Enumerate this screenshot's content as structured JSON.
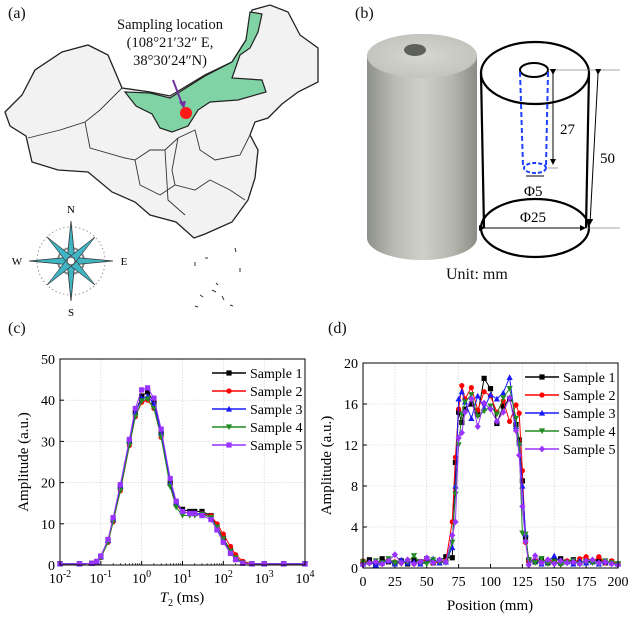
{
  "panels": {
    "a": {
      "label": "(a)",
      "annotation_line1": "Sampling location",
      "annotation_line2": "(108°21′32″ E,",
      "annotation_line3": "38°30′24″N)",
      "compass": {
        "n": "N",
        "s": "S",
        "e": "E",
        "w": "W"
      },
      "colors": {
        "region": "#7fd3a4",
        "marker": "#ff1a1a",
        "arrow": "#7030a0",
        "land": "#f2f2f2",
        "compass": "#3fb5c4"
      },
      "icon": "compass-rose-icon"
    },
    "b": {
      "label": "(b)",
      "dim_depth": "27",
      "dim_height": "50",
      "dim_hole": "Φ5",
      "dim_diameter": "Φ25",
      "unit": "Unit: mm",
      "colors": {
        "hole_dashed": "#1f3fff"
      }
    },
    "c": {
      "label": "(c)"
    },
    "d": {
      "label": "(d)"
    }
  },
  "chart_data": [
    {
      "type": "line",
      "panel": "(c)",
      "xlabel_italic": "T",
      "xlabel_sub": "2",
      "xlabel_unit": " (ms)",
      "ylabel": "Amplitude (a.u.)",
      "xscale": "log",
      "xlim": [
        0.01,
        10000
      ],
      "ylim": [
        0,
        50
      ],
      "xticks": [
        {
          "base": "10",
          "exp": "-2"
        },
        {
          "base": "10",
          "exp": "-1"
        },
        {
          "base": "10",
          "exp": "0"
        },
        {
          "base": "10",
          "exp": "1"
        },
        {
          "base": "10",
          "exp": "2"
        },
        {
          "base": "10",
          "exp": "3"
        },
        {
          "base": "10",
          "exp": "4"
        }
      ],
      "yticks": [
        "0",
        "10",
        "20",
        "30",
        "40",
        "50"
      ],
      "grid": true,
      "legend": "top-right",
      "x": [
        0.01,
        0.03,
        0.06,
        0.08,
        0.1,
        0.15,
        0.2,
        0.3,
        0.5,
        0.7,
        1,
        1.4,
        2,
        3,
        5,
        7,
        10,
        15,
        20,
        30,
        50,
        70,
        100,
        150,
        200,
        300,
        500,
        1000,
        3000,
        10000
      ],
      "series": [
        {
          "name": "Sample 1",
          "color": "#000000",
          "marker": "square",
          "values": [
            0.3,
            0.3,
            0.4,
            0.8,
            2,
            6,
            11,
            19,
            30,
            37,
            41,
            42,
            39.5,
            32,
            20,
            15,
            13.5,
            13,
            13,
            13,
            12,
            9.5,
            6.5,
            3.5,
            1.8,
            0.6,
            0.3,
            0.3,
            0.3,
            0.3
          ]
        },
        {
          "name": "Sample 2",
          "color": "#ff0000",
          "marker": "circle",
          "values": [
            0.3,
            0.3,
            0.4,
            0.7,
            1.8,
            5.5,
            10.5,
            18,
            29,
            36,
            39.5,
            40,
            38,
            31,
            19.5,
            14.5,
            13,
            12.5,
            12.5,
            12.5,
            12,
            10,
            7.5,
            4.5,
            2.5,
            0.9,
            0.3,
            0.3,
            0.3,
            0.3
          ]
        },
        {
          "name": "Sample 3",
          "color": "#1a1aff",
          "marker": "triangle-up",
          "values": [
            0.3,
            0.3,
            0.4,
            0.8,
            2,
            6,
            11,
            19,
            30,
            37,
            40.5,
            41,
            39,
            32,
            20,
            15,
            13,
            12.5,
            12.5,
            12.5,
            11.5,
            9,
            6,
            3.2,
            1.6,
            0.5,
            0.3,
            0.3,
            0.3,
            0.3
          ]
        },
        {
          "name": "Sample 4",
          "color": "#228b22",
          "marker": "triangle-down",
          "values": [
            0.3,
            0.3,
            0.4,
            0.7,
            1.8,
            5.5,
            10.5,
            18,
            29,
            36,
            39.8,
            40.3,
            38,
            31,
            19,
            14,
            12,
            12,
            12,
            12.3,
            11.5,
            9.2,
            6.3,
            3.3,
            1.7,
            0.5,
            0.3,
            0.3,
            0.3,
            0.3
          ]
        },
        {
          "name": "Sample 5",
          "color": "#9933ff",
          "marker": "square",
          "values": [
            0.3,
            0.3,
            0.4,
            0.9,
            2.2,
            6.2,
            11.5,
            19.5,
            30.5,
            38,
            42.5,
            43,
            40.5,
            33,
            21,
            15.5,
            13,
            12.5,
            12.5,
            12,
            11,
            8.5,
            5.5,
            2.8,
            1.3,
            0.4,
            0.3,
            0.3,
            0.3,
            0.3
          ]
        }
      ]
    },
    {
      "type": "line",
      "panel": "(d)",
      "xlabel": "Position (mm)",
      "ylabel": "Amplitude (a.u.)",
      "xlim": [
        0,
        200
      ],
      "ylim": [
        0,
        20
      ],
      "xticks": [
        "0",
        "25",
        "50",
        "75",
        "100",
        "125",
        "150",
        "175",
        "200"
      ],
      "yticks": [
        "0",
        "4",
        "8",
        "12",
        "16",
        "20"
      ],
      "grid": true,
      "legend": "top-right",
      "x": [
        0,
        5,
        10,
        15,
        20,
        25,
        30,
        35,
        40,
        45,
        50,
        55,
        60,
        65,
        70,
        72.5,
        75,
        77.5,
        80,
        85,
        90,
        95,
        100,
        105,
        110,
        115,
        120,
        122.5,
        125,
        127.5,
        130,
        135,
        140,
        145,
        150,
        155,
        160,
        165,
        170,
        175,
        180,
        185,
        190,
        195,
        200
      ],
      "series": [
        {
          "name": "Sample 1",
          "color": "#000000",
          "marker": "square",
          "values": [
            0.5,
            0.8,
            0.4,
            0.9,
            0.6,
            0.5,
            0.7,
            0.4,
            0.8,
            0.6,
            0.9,
            0.5,
            0.7,
            1.1,
            1.0,
            10.3,
            15.2,
            14.2,
            15.5,
            16.0,
            15.0,
            18.5,
            17.5,
            14.1,
            15.8,
            16.5,
            14.0,
            12.5,
            8.5,
            3.0,
            0.8,
            0.6,
            0.9,
            0.5,
            0.7,
            0.9,
            0.6,
            0.8,
            0.5,
            0.7,
            0.6,
            0.8,
            0.5,
            0.6,
            0.4
          ]
        },
        {
          "name": "Sample 2",
          "color": "#ff0000",
          "marker": "circle",
          "values": [
            0.7,
            0.5,
            0.6,
            0.4,
            0.8,
            0.6,
            0.5,
            0.7,
            0.4,
            0.6,
            0.8,
            0.5,
            0.6,
            0.7,
            4.5,
            10.8,
            15.5,
            17.8,
            16.5,
            17.6,
            15.4,
            17.2,
            16.8,
            15.2,
            16.3,
            14.3,
            15.9,
            15.1,
            9.5,
            2.5,
            0.6,
            0.7,
            0.5,
            0.8,
            0.6,
            0.4,
            0.7,
            0.5,
            0.9,
            1.1,
            0.6,
            1.1,
            0.5,
            0.7,
            0.4
          ]
        },
        {
          "name": "Sample 3",
          "color": "#1a1aff",
          "marker": "triangle-up",
          "values": [
            0.4,
            0.6,
            0.3,
            0.5,
            0.7,
            0.4,
            0.8,
            0.5,
            0.6,
            0.4,
            0.7,
            0.9,
            0.5,
            0.6,
            2.0,
            8.0,
            16.5,
            17.2,
            16.2,
            14.6,
            16.8,
            15.6,
            16.9,
            16.5,
            17.1,
            18.6,
            13.8,
            12.2,
            8.0,
            3.3,
            0.5,
            0.7,
            0.4,
            0.6,
            1.2,
            0.5,
            0.6,
            0.4,
            0.7,
            0.5,
            0.6,
            0.4,
            0.6,
            0.5,
            0.4
          ]
        },
        {
          "name": "Sample 4",
          "color": "#228b22",
          "marker": "triangle-down",
          "values": [
            0.6,
            0.4,
            0.7,
            0.5,
            0.9,
            0.5,
            0.4,
            0.6,
            1.2,
            0.5,
            0.4,
            0.8,
            0.6,
            0.5,
            2.5,
            7.2,
            12.0,
            15.0,
            16.2,
            16.9,
            14.8,
            15.3,
            15.8,
            15.0,
            16.6,
            17.5,
            14.6,
            12.0,
            3.4,
            3.3,
            0.8,
            0.5,
            0.9,
            0.4,
            0.6,
            0.3,
            0.5,
            0.7,
            0.4,
            0.6,
            0.5,
            0.4,
            0.7,
            0.5,
            0.4
          ]
        },
        {
          "name": "Sample 5",
          "color": "#9933ff",
          "marker": "diamond",
          "values": [
            0.3,
            0.5,
            0.6,
            0.4,
            0.7,
            1.3,
            0.5,
            0.8,
            0.4,
            0.6,
            1.0,
            0.5,
            0.8,
            0.6,
            3.2,
            4.5,
            12.7,
            13.2,
            15.2,
            16.5,
            13.8,
            16.1,
            15.5,
            14.3,
            15.2,
            16.6,
            13.4,
            11.0,
            6.0,
            2.6,
            0.3,
            1.2,
            0.5,
            0.8,
            0.4,
            0.7,
            0.5,
            0.6,
            0.4,
            0.7,
            0.8,
            0.5,
            0.6,
            0.4,
            0.3
          ]
        }
      ]
    }
  ]
}
